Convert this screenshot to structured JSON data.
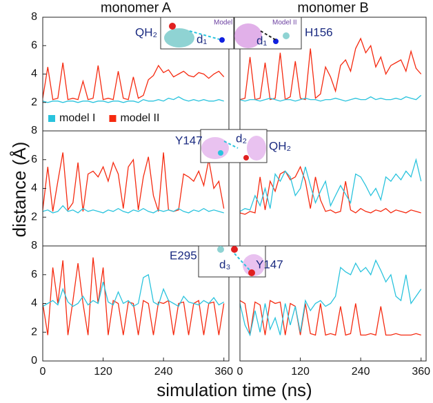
{
  "x_label": "simulation time (ns)",
  "y_label": "distance (Å)",
  "insets": [
    {
      "model": "Model I",
      "distance": "d₁",
      "left": "QH₂"
    },
    {
      "model": "Model II",
      "distance": "d₁",
      "right": "H156"
    },
    {
      "distance": "d₂",
      "left": "Y147",
      "right": "QH₂"
    },
    {
      "distance": "d₃",
      "left": "E295",
      "right": "Y147"
    }
  ],
  "chart_data": [
    {
      "type": "line",
      "title": "monomer A",
      "legend": "lower left",
      "x": [
        0,
        10,
        20,
        30,
        40,
        50,
        60,
        70,
        80,
        90,
        100,
        110,
        120,
        130,
        140,
        150,
        160,
        170,
        180,
        190,
        200,
        210,
        220,
        230,
        240,
        250,
        260,
        270,
        280,
        290,
        300,
        310,
        320,
        330,
        340,
        350,
        360
      ],
      "xlim": [
        0,
        370
      ],
      "ylim": [
        0,
        8
      ],
      "yticks": [
        2,
        4,
        6,
        8
      ],
      "series": [
        {
          "name": "model I",
          "color": "#29c3dd",
          "values": [
            2.1,
            2.0,
            2.1,
            2.1,
            2.0,
            2.1,
            2.1,
            2.0,
            2.1,
            2.1,
            2.0,
            2.1,
            2.1,
            2.0,
            2.1,
            2.1,
            2.0,
            2.1,
            2.1,
            2.0,
            2.2,
            2.1,
            2.1,
            2.2,
            2.1,
            2.3,
            2.2,
            2.4,
            2.2,
            2.1,
            2.2,
            2.1,
            2.2,
            2.1,
            2.1,
            2.2,
            2.1
          ]
        },
        {
          "name": "model II",
          "color": "#f5290f",
          "values": [
            2.3,
            4.5,
            2.2,
            2.3,
            4.8,
            2.2,
            2.3,
            2.2,
            3.5,
            2.2,
            2.3,
            4.6,
            2.2,
            2.3,
            2.2,
            4.2,
            2.3,
            2.2,
            3.8,
            2.3,
            2.5,
            3.6,
            3.9,
            4.6,
            4.1,
            4.3,
            3.8,
            4.0,
            4.2,
            3.9,
            3.8,
            4.1,
            4.0,
            3.7,
            4.0,
            4.2,
            3.8
          ]
        }
      ]
    },
    {
      "type": "line",
      "title": "monomer B",
      "x": [
        0,
        10,
        20,
        30,
        40,
        50,
        60,
        70,
        80,
        90,
        100,
        110,
        120,
        130,
        140,
        150,
        160,
        170,
        180,
        190,
        200,
        210,
        220,
        230,
        240,
        250,
        260,
        270,
        280,
        290,
        300,
        310,
        320,
        330,
        340,
        350,
        360
      ],
      "xlim": [
        0,
        370
      ],
      "ylim": [
        0,
        8
      ],
      "series": [
        {
          "color": "#29c3dd",
          "values": [
            2.2,
            2.1,
            2.2,
            2.2,
            2.1,
            2.2,
            2.3,
            2.2,
            2.1,
            2.2,
            2.2,
            2.1,
            2.2,
            2.3,
            2.2,
            2.2,
            2.1,
            2.2,
            2.2,
            2.3,
            2.2,
            2.1,
            2.2,
            2.3,
            2.2,
            2.2,
            2.4,
            2.2,
            2.3,
            2.2,
            2.2,
            2.3,
            2.2,
            2.4,
            2.3,
            2.2,
            2.5
          ]
        },
        {
          "color": "#f5290f",
          "values": [
            2.2,
            2.3,
            5.2,
            2.2,
            2.3,
            4.8,
            2.2,
            2.3,
            5.5,
            2.2,
            2.4,
            4.9,
            2.3,
            2.2,
            5.8,
            2.3,
            2.6,
            4.5,
            3.8,
            2.8,
            4.6,
            5.0,
            4.2,
            5.8,
            6.5,
            5.5,
            6.0,
            4.5,
            5.2,
            4.0,
            4.6,
            4.8,
            5.0,
            4.2,
            5.6,
            4.4,
            4.0
          ]
        }
      ]
    },
    {
      "type": "line",
      "x": [
        0,
        10,
        20,
        30,
        40,
        50,
        60,
        70,
        80,
        90,
        100,
        110,
        120,
        130,
        140,
        150,
        160,
        170,
        180,
        190,
        200,
        210,
        220,
        230,
        240,
        250,
        260,
        270,
        280,
        290,
        300,
        310,
        320,
        330,
        340,
        350,
        360
      ],
      "xlim": [
        0,
        370
      ],
      "ylim": [
        0,
        8
      ],
      "yticks": [
        2,
        4,
        6,
        8
      ],
      "series": [
        {
          "color": "#29c3dd",
          "values": [
            2.4,
            2.5,
            2.3,
            2.4,
            2.8,
            2.4,
            2.5,
            2.3,
            2.6,
            2.4,
            2.5,
            2.4,
            2.3,
            2.5,
            2.4,
            2.6,
            2.4,
            2.3,
            2.5,
            2.4,
            2.6,
            2.4,
            2.3,
            2.5,
            2.4,
            2.5,
            2.4,
            2.6,
            2.4,
            2.3,
            2.5,
            2.4,
            2.6,
            2.4,
            2.5,
            2.4,
            2.3
          ]
        },
        {
          "color": "#f5290f",
          "values": [
            2.5,
            5.5,
            2.4,
            4.5,
            6.5,
            2.5,
            3.0,
            5.8,
            2.4,
            5.0,
            5.2,
            4.8,
            5.5,
            4.5,
            5.8,
            5.0,
            2.6,
            5.5,
            6.0,
            2.5,
            4.8,
            6.2,
            3.5,
            2.4,
            6.5,
            2.5,
            2.4,
            2.5,
            5.0,
            4.8,
            4.5,
            5.2,
            4.2,
            6.0,
            4.0,
            4.5,
            2.6
          ]
        }
      ]
    },
    {
      "type": "line",
      "x": [
        0,
        10,
        20,
        30,
        40,
        50,
        60,
        70,
        80,
        90,
        100,
        110,
        120,
        130,
        140,
        150,
        160,
        170,
        180,
        190,
        200,
        210,
        220,
        230,
        240,
        250,
        260,
        270,
        280,
        290,
        300,
        310,
        320,
        330,
        340,
        350,
        360
      ],
      "xlim": [
        0,
        370
      ],
      "ylim": [
        0,
        8
      ],
      "series": [
        {
          "color": "#29c3dd",
          "values": [
            2.4,
            2.6,
            2.5,
            3.5,
            2.8,
            4.0,
            2.6,
            5.0,
            4.5,
            5.2,
            4.8,
            3.5,
            4.0,
            5.5,
            4.2,
            3.0,
            3.8,
            4.5,
            2.8,
            3.5,
            4.2,
            3.6,
            3.0,
            5.0,
            4.8,
            4.2,
            3.5,
            4.0,
            3.2,
            4.8,
            4.5,
            5.0,
            4.6,
            5.2,
            4.8,
            6.0,
            4.5
          ]
        },
        {
          "color": "#f5290f",
          "values": [
            2.3,
            2.2,
            2.4,
            2.3,
            4.8,
            2.5,
            4.5,
            3.8,
            5.0,
            5.2,
            4.6,
            4.8,
            5.5,
            4.5,
            2.6,
            4.8,
            3.2,
            2.4,
            2.5,
            2.3,
            2.4,
            4.5,
            2.5,
            2.3,
            2.6,
            2.4,
            2.3,
            2.5,
            2.4,
            2.6,
            2.3,
            2.5,
            2.4,
            2.3,
            2.5,
            2.4,
            2.3
          ]
        }
      ]
    },
    {
      "type": "line",
      "x": [
        0,
        10,
        20,
        30,
        40,
        50,
        60,
        70,
        80,
        90,
        100,
        110,
        120,
        130,
        140,
        150,
        160,
        170,
        180,
        190,
        200,
        210,
        220,
        230,
        240,
        250,
        260,
        270,
        280,
        290,
        300,
        310,
        320,
        330,
        340,
        350,
        360
      ],
      "xlim": [
        0,
        370
      ],
      "ylim": [
        0,
        8
      ],
      "yticks": [
        0,
        2,
        4,
        6,
        8
      ],
      "xticks": [
        0,
        120,
        240,
        360
      ],
      "series": [
        {
          "color": "#29c3dd",
          "values": [
            3.8,
            4.0,
            4.2,
            3.9,
            5.0,
            4.1,
            3.8,
            4.0,
            4.5,
            3.9,
            4.2,
            4.0,
            5.5,
            4.1,
            3.9,
            4.8,
            4.0,
            4.2,
            3.8,
            4.0,
            5.8,
            6.0,
            4.1,
            3.9,
            5.0,
            4.2,
            4.0,
            3.8,
            4.5,
            4.1,
            4.0,
            3.9,
            4.2,
            4.0,
            4.4,
            3.9,
            4.1
          ]
        },
        {
          "color": "#f5290f",
          "values": [
            4.0,
            1.8,
            6.5,
            4.0,
            7.0,
            1.8,
            4.2,
            6.8,
            4.0,
            1.8,
            7.2,
            4.0,
            6.5,
            1.8,
            4.2,
            4.0,
            1.8,
            4.1,
            4.0,
            1.8,
            4.2,
            4.0,
            1.8,
            4.1,
            4.0,
            4.2,
            1.8,
            4.0,
            4.1,
            1.8,
            4.0,
            4.2,
            1.8,
            4.0,
            4.1,
            1.8,
            4.0
          ]
        }
      ]
    },
    {
      "type": "line",
      "x": [
        0,
        10,
        20,
        30,
        40,
        50,
        60,
        70,
        80,
        90,
        100,
        110,
        120,
        130,
        140,
        150,
        160,
        170,
        180,
        190,
        200,
        210,
        220,
        230,
        240,
        250,
        260,
        270,
        280,
        290,
        300,
        310,
        320,
        330,
        340,
        350,
        360
      ],
      "xlim": [
        0,
        370
      ],
      "ylim": [
        0,
        8
      ],
      "xticks": [
        0,
        120,
        240,
        360
      ],
      "series": [
        {
          "color": "#29c3dd",
          "values": [
            4.0,
            2.5,
            1.8,
            3.5,
            2.0,
            4.0,
            2.2,
            3.0,
            1.8,
            4.0,
            2.5,
            3.8,
            2.0,
            4.2,
            3.5,
            4.0,
            4.2,
            3.8,
            4.0,
            4.5,
            6.5,
            6.2,
            6.0,
            6.8,
            6.2,
            6.5,
            6.0,
            7.0,
            6.3,
            5.5,
            6.0,
            4.5,
            4.2,
            6.0,
            4.0,
            4.5,
            5.0
          ]
        },
        {
          "color": "#f5290f",
          "values": [
            4.2,
            4.0,
            1.8,
            4.1,
            3.9,
            1.8,
            4.2,
            4.0,
            4.1,
            1.8,
            4.0,
            3.8,
            1.8,
            4.0,
            1.9,
            1.8,
            4.0,
            1.8,
            1.9,
            1.8,
            3.8,
            1.8,
            1.9,
            4.0,
            1.8,
            1.8,
            1.9,
            1.8,
            3.8,
            1.8,
            1.8,
            1.9,
            1.8,
            1.8,
            1.8,
            1.9,
            1.8
          ]
        }
      ]
    }
  ]
}
